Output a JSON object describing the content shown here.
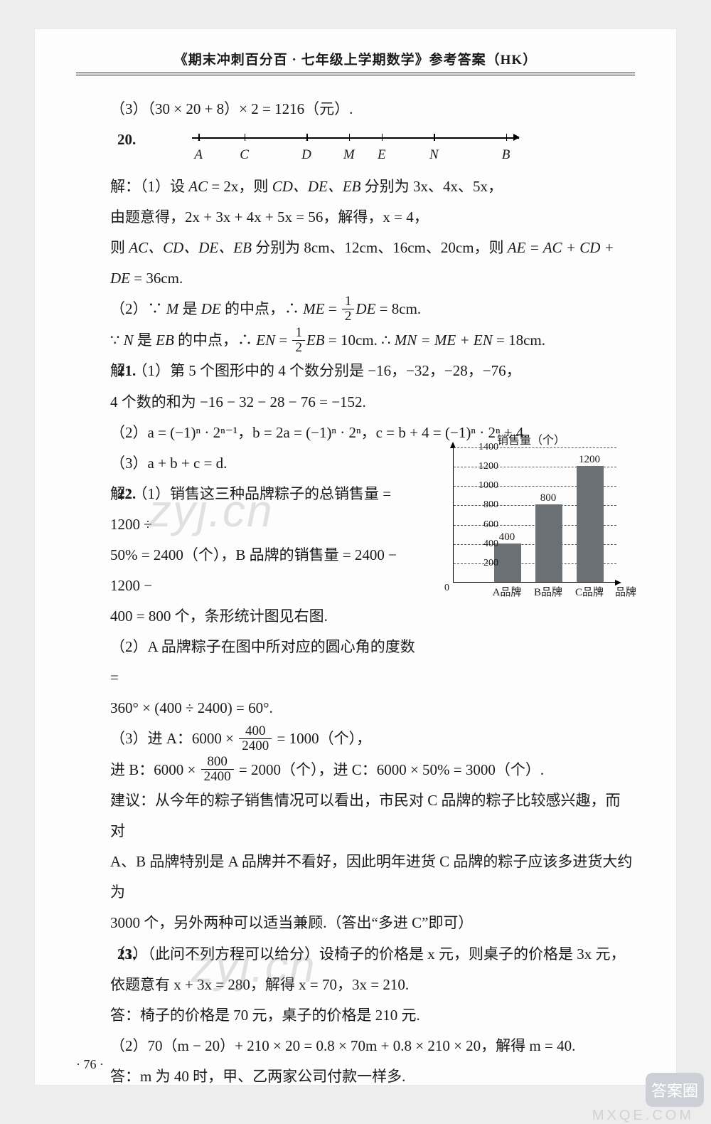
{
  "header": "《期末冲刺百分百 · 七年级上学期数学》参考答案（HK）",
  "page_number": "· 76 ·",
  "watermark": "zyj.cn",
  "footer_watermark": "MXQE.COM",
  "corner_badge": "答案圈",
  "q19_3": "（3）（30 × 20 + 8）× 2 = 1216（元）.",
  "q20_num": "20.",
  "numberline": {
    "labels": [
      "A",
      "C",
      "D",
      "M",
      "E",
      "N",
      "B"
    ],
    "positions_pct": [
      2,
      16,
      35,
      48,
      58,
      74,
      96
    ]
  },
  "q20_l1a": "解：（1）设 ",
  "q20_l1b": "AC",
  "q20_l1c": " = 2x，则 ",
  "q20_l1d": "CD、DE、EB",
  "q20_l1e": " 分别为 3x、4x、5x，",
  "q20_l2": "由题意得，2x + 3x + 4x + 5x = 56，解得，x = 4，",
  "q20_l3a": "则 ",
  "q20_l3b": "AC、CD、DE、EB",
  "q20_l3c": " 分别为 8cm、12cm、16cm、20cm，则 ",
  "q20_l3d": "AE = AC + CD + DE",
  "q20_l3e": " = 36cm.",
  "q20_l4a": "（2）∵ ",
  "q20_l4b": "M",
  "q20_l4c": " 是 ",
  "q20_l4d": "DE",
  "q20_l4e": " 的中点，∴ ",
  "q20_l4f": "ME",
  "q20_l4g": " = ",
  "q20_l4h": "DE",
  "q20_l4i": " = 8cm.",
  "q20_l5a": "∵ ",
  "q20_l5b": "N",
  "q20_l5c": " 是 ",
  "q20_l5d": "EB",
  "q20_l5e": " 的中点，∴ ",
  "q20_l5f": "EN",
  "q20_l5g": " = ",
  "q20_l5h": "EB",
  "q20_l5i": " = 10cm. ∴ ",
  "q20_l5j": "MN = ME + EN",
  "q20_l5k": " = 18cm.",
  "half_num": "1",
  "half_den": "2",
  "q21_num": "21.",
  "q21_l1": "解：（1）第 5 个图形中的 4 个数分别是 −16，−32，−28，−76，",
  "q21_l2": "4 个数的和为 −16 − 32 − 28 − 76 = −152.",
  "q21_l3": "（2）a = (−1)ⁿ · 2ⁿ⁻¹，b = 2a = (−1)ⁿ · 2ⁿ，c = b + 4 = (−1)ⁿ · 2ⁿ + 4.",
  "q21_l4": "（3）a + b + c = d.",
  "q22_num": "22.",
  "q22_l1": "解：（1）销售这三种品牌粽子的总销售量 = 1200 ÷",
  "q22_l2": "50% = 2400（个），B 品牌的销售量 = 2400 − 1200 −",
  "q22_l3": "400 = 800 个，条形统计图见右图.",
  "q22_l4": "（2）A 品牌粽子在图中所对应的圆心角的度数 =",
  "q22_l5": "360° × (400 ÷ 2400) = 60°.",
  "q22_l6a": "（3）进 A：6000 × ",
  "q22_l6b": " = 1000（个），",
  "frac_400": "400",
  "frac_2400": "2400",
  "q22_l7a": "进 B：6000 × ",
  "q22_l7b": " = 2000（个），进 C：6000 × 50% = 3000（个）.",
  "frac_800": "800",
  "q22_l8": "建议：从今年的粽子销售情况可以看出，市民对 C 品牌的粽子比较感兴趣，而对",
  "q22_l9": "A、B 品牌特别是 A 品牌并不看好，因此明年进货 C 品牌的粽子应该多进货大约为",
  "q22_l10": "3000 个，另外两种可以适当兼顾.（答出“多进 C”即可）",
  "q23_num": "23.",
  "q23_l1": "（1）（此问不列方程可以给分）设椅子的价格是 x 元，则桌子的价格是 3x 元，",
  "q23_l2": "依题意有 x + 3x = 280，解得 x = 70，3x = 210.",
  "q23_l3": "答：椅子的价格是 70 元，桌子的价格是 210 元.",
  "q23_l4": "（2）70（m − 20）+ 210 × 20 = 0.8 × 70m + 0.8 × 210 × 20，解得 m = 40.",
  "q23_l5": "答：m 为 40 时，甲、乙两家公司付款一样多.",
  "chart": {
    "title": "销售量（个）",
    "y_axis_title": "",
    "x_axis_title": "品牌",
    "y_max": 1400,
    "y_step": 200,
    "y_ticks": [
      200,
      400,
      600,
      800,
      1000,
      1200,
      1400
    ],
    "zero": "0",
    "bars": [
      {
        "label": "A品牌",
        "value": 400,
        "color": "#6b7075"
      },
      {
        "label": "B品牌",
        "value": 800,
        "color": "#6b7075"
      },
      {
        "label": "C品牌",
        "value": 1200,
        "color": "#6b7075"
      }
    ],
    "bar_value_labels": [
      "400",
      "800",
      "1200"
    ]
  }
}
